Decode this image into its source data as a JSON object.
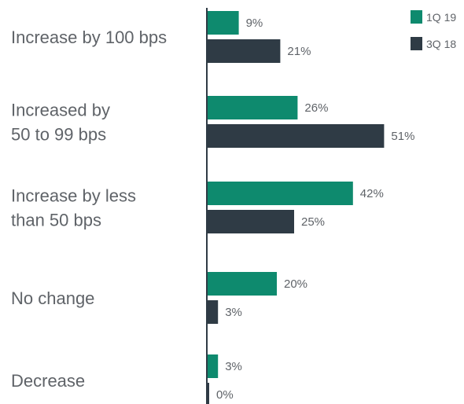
{
  "chart_data": {
    "type": "bar",
    "orientation": "horizontal",
    "categories": [
      [
        "Increase by 100 bps"
      ],
      [
        "Increased by",
        "50 to 99 bps"
      ],
      [
        "Increase by less",
        "than 50 bps"
      ],
      [
        "No change"
      ],
      [
        "Decrease"
      ]
    ],
    "series": [
      {
        "name": "1Q 19",
        "color": "#0e8a6e",
        "values": [
          9,
          26,
          42,
          20,
          3
        ],
        "labels": [
          "9%",
          "26%",
          "42%",
          "20%",
          "3%"
        ]
      },
      {
        "name": "3Q 18",
        "color": "#2f3b45",
        "values": [
          21,
          51,
          25,
          3,
          0
        ],
        "labels": [
          "21%",
          "51%",
          "25%",
          "3%",
          "0%"
        ]
      }
    ],
    "legend": {
      "position": "top-right"
    },
    "xlim": [
      0,
      100
    ],
    "grid": false
  }
}
